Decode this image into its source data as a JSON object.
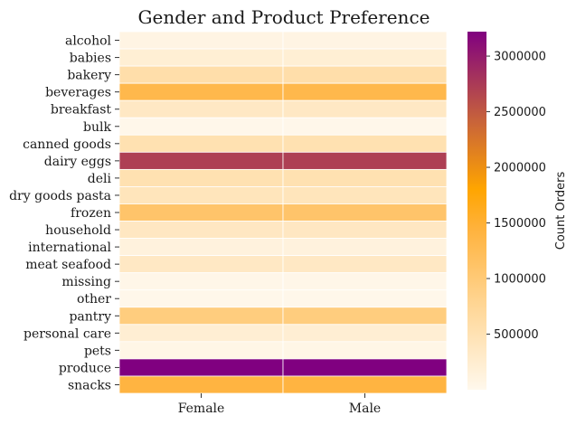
{
  "chart_data": {
    "type": "heatmap",
    "title": "Gender and Product Preference",
    "xlabel": "",
    "ylabel": "",
    "columns": [
      "Female",
      "Male"
    ],
    "rows": [
      "alcohol",
      "babies",
      "bakery",
      "beverages",
      "breakfast",
      "bulk",
      "canned goods",
      "dairy eggs",
      "deli",
      "dry goods pasta",
      "frozen",
      "household",
      "international",
      "meat seafood",
      "missing",
      "other",
      "pantry",
      "personal care",
      "pets",
      "produce",
      "snacks"
    ],
    "values": [
      [
        80000,
        80000
      ],
      [
        210000,
        210000
      ],
      [
        580000,
        580000
      ],
      [
        1330000,
        1330000
      ],
      [
        350000,
        350000
      ],
      [
        17000,
        17000
      ],
      [
        520000,
        520000
      ],
      [
        2710000,
        2710000
      ],
      [
        520000,
        520000
      ],
      [
        430000,
        430000
      ],
      [
        1100000,
        1100000
      ],
      [
        370000,
        370000
      ],
      [
        130000,
        130000
      ],
      [
        350000,
        350000
      ],
      [
        34000,
        34000
      ],
      [
        18000,
        18000
      ],
      [
        940000,
        940000
      ],
      [
        220000,
        220000
      ],
      [
        50000,
        50000
      ],
      [
        3220000,
        3220000
      ],
      [
        1410000,
        1410000
      ]
    ],
    "colorbar": {
      "label": "Count Orders",
      "ticks": [
        500000,
        1000000,
        1500000,
        2000000,
        2500000,
        3000000
      ],
      "range": [
        0,
        3220000
      ],
      "colors": [
        "#fff8ec",
        "#ffc46a",
        "#ffa500",
        "#c8633a",
        "#800080"
      ]
    }
  }
}
